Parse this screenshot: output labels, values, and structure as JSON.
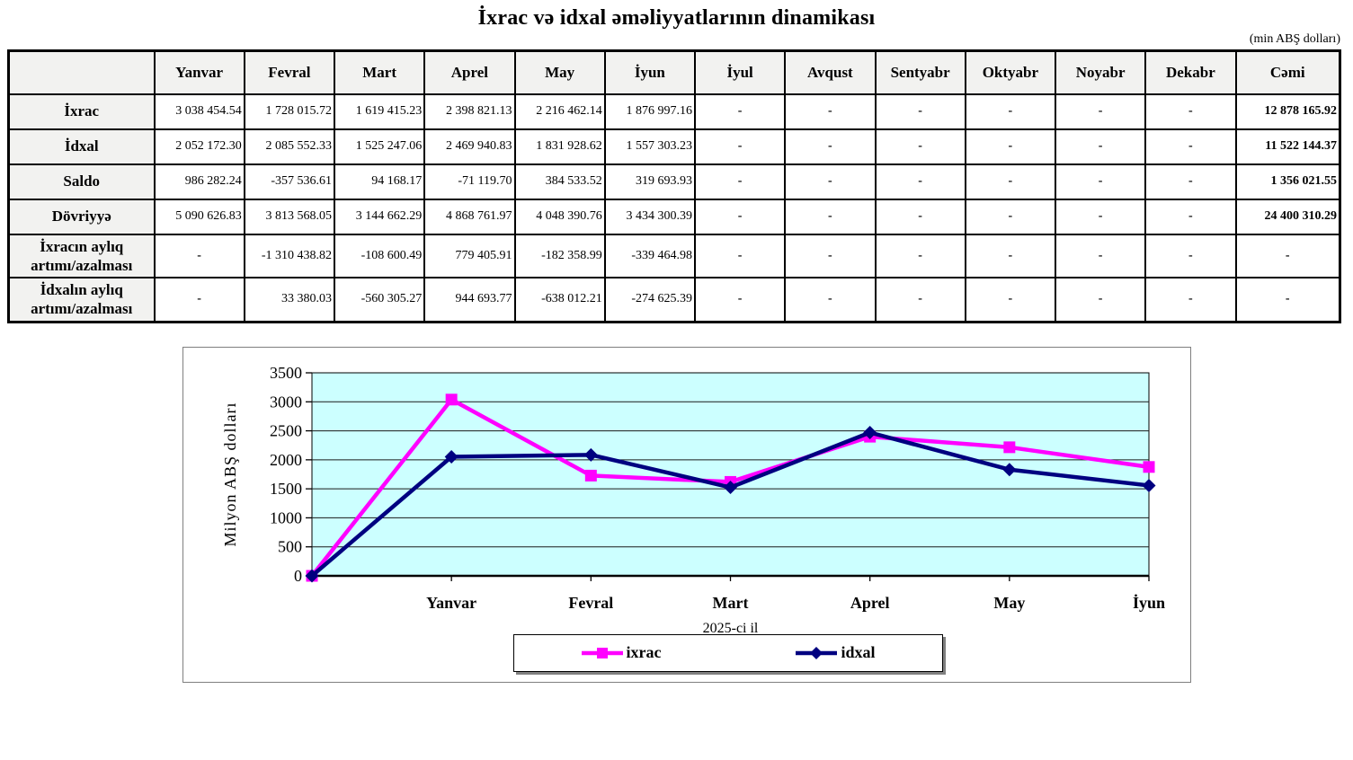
{
  "title": "İxrac və idxal əməliyyatlarının dinamikası",
  "unit_note": "(min ABŞ dolları)",
  "chart_data": [
    {
      "type": "table",
      "columns": [
        "",
        "Yanvar",
        "Fevral",
        "Mart",
        "Aprel",
        "May",
        "İyun",
        "İyul",
        "Avqust",
        "Sentyabr",
        "Oktyabr",
        "Noyabr",
        "Dekabr",
        "Cəmi"
      ],
      "rows": [
        {
          "label": "İxrac",
          "values": [
            "3 038 454.54",
            "1 728 015.72",
            "1 619 415.23",
            "2 398 821.13",
            "2 216 462.14",
            "1 876 997.16",
            "-",
            "-",
            "-",
            "-",
            "-",
            "-",
            "12 878 165.92"
          ]
        },
        {
          "label": "İdxal",
          "values": [
            "2 052 172.30",
            "2 085 552.33",
            "1 525 247.06",
            "2 469 940.83",
            "1 831 928.62",
            "1 557 303.23",
            "-",
            "-",
            "-",
            "-",
            "-",
            "-",
            "11 522 144.37"
          ]
        },
        {
          "label": "Saldo",
          "values": [
            "986 282.24",
            "-357 536.61",
            "94 168.17",
            "-71 119.70",
            "384 533.52",
            "319 693.93",
            "-",
            "-",
            "-",
            "-",
            "-",
            "-",
            "1 356 021.55"
          ]
        },
        {
          "label": "Dövriyyə",
          "values": [
            "5 090 626.83",
            "3 813 568.05",
            "3 144 662.29",
            "4 868 761.97",
            "4 048 390.76",
            "3 434 300.39",
            "-",
            "-",
            "-",
            "-",
            "-",
            "-",
            "24 400 310.29"
          ]
        },
        {
          "label": "İxracın aylıq\nartımı/azalması",
          "values": [
            "-",
            "-1 310 438.82",
            "-108 600.49",
            "779 405.91",
            "-182 358.99",
            "-339 464.98",
            "-",
            "-",
            "-",
            "-",
            "-",
            "-",
            "-"
          ]
        },
        {
          "label": "İdxalın aylıq\nartımı/azalması",
          "values": [
            "-",
            "33 380.03",
            "-560 305.27",
            "944 693.77",
            "-638 012.21",
            "-274 625.39",
            "-",
            "-",
            "-",
            "-",
            "-",
            "-",
            "-"
          ]
        }
      ]
    },
    {
      "type": "line",
      "categories": [
        "",
        "Yanvar",
        "Fevral",
        "Mart",
        "Aprel",
        "May",
        "İyun"
      ],
      "series": [
        {
          "name": "ixrac",
          "color": "#FF00FF",
          "marker": "square",
          "values": [
            0,
            3038.45,
            1728.02,
            1619.42,
            2398.82,
            2216.46,
            1877.0
          ]
        },
        {
          "name": "idxal",
          "color": "#000080",
          "marker": "diamond",
          "values": [
            0,
            2052.17,
            2085.55,
            1525.25,
            2469.94,
            1831.93,
            1557.3
          ]
        }
      ],
      "title": "",
      "xlabel": "2025-ci il",
      "ylabel": "Milyon ABŞ dolları",
      "ylim": [
        0,
        3500
      ],
      "ytick_step": 500,
      "grid": true,
      "plot_bg": "#CCFFFF",
      "legend_position": "bottom"
    }
  ]
}
